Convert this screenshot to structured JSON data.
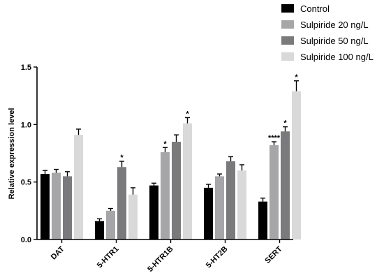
{
  "chart_data": {
    "type": "bar",
    "title": "",
    "xlabel": "",
    "ylabel": "Relative expression level",
    "ylim": [
      0,
      1.5
    ],
    "yticks": [
      "0.0",
      "0.5",
      "1.0",
      "1.5"
    ],
    "grid": false,
    "legend_position": "top-right",
    "categories": [
      "DAT",
      "5-HTR1",
      "5-HTR1B",
      "5-HT2B",
      "SERT"
    ],
    "series": [
      {
        "name": "Control",
        "color": "#000000",
        "values": [
          0.57,
          0.16,
          0.47,
          0.45,
          0.33
        ],
        "errors": [
          0.03,
          0.02,
          0.02,
          0.03,
          0.03
        ],
        "annotations": [
          "",
          "",
          "",
          "",
          ""
        ]
      },
      {
        "name": "Sulpiride 20 ng/L",
        "color": "#a6a6a8",
        "values": [
          0.58,
          0.25,
          0.76,
          0.55,
          0.82
        ],
        "errors": [
          0.03,
          0.02,
          0.04,
          0.02,
          0.03
        ],
        "annotations": [
          "",
          "",
          "*",
          "",
          "****"
        ]
      },
      {
        "name": "Sulpiride 50 ng/L",
        "color": "#7a7a7c",
        "values": [
          0.55,
          0.63,
          0.85,
          0.68,
          0.94
        ],
        "errors": [
          0.04,
          0.05,
          0.06,
          0.04,
          0.04
        ],
        "annotations": [
          "",
          "*",
          "",
          "",
          "*"
        ]
      },
      {
        "name": "Sulpiride 100 ng/L",
        "color": "#d9d9d9",
        "values": [
          0.91,
          0.39,
          1.01,
          0.6,
          1.29
        ],
        "errors": [
          0.05,
          0.06,
          0.05,
          0.05,
          0.09
        ],
        "annotations": [
          "",
          "",
          "*",
          "",
          "*"
        ]
      }
    ]
  }
}
